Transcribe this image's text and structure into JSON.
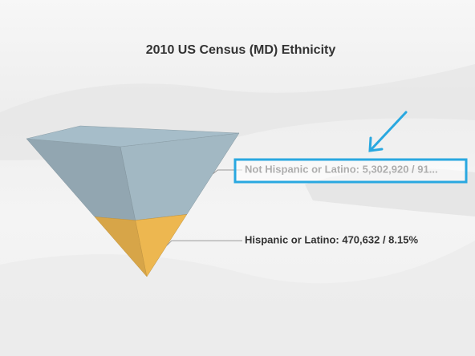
{
  "chart_data": {
    "type": "pyramid",
    "title": "2010 US Census (MD) Ethnicity",
    "values": [
      5302920,
      470632
    ],
    "value_labels": [
      "Not Hispanic or Latino: 5,302,920 / 91...",
      "Hispanic or Latino: 470,632 / 8.15%"
    ],
    "colors": [
      "#9aafba",
      "#e2ae4c"
    ]
  }
}
